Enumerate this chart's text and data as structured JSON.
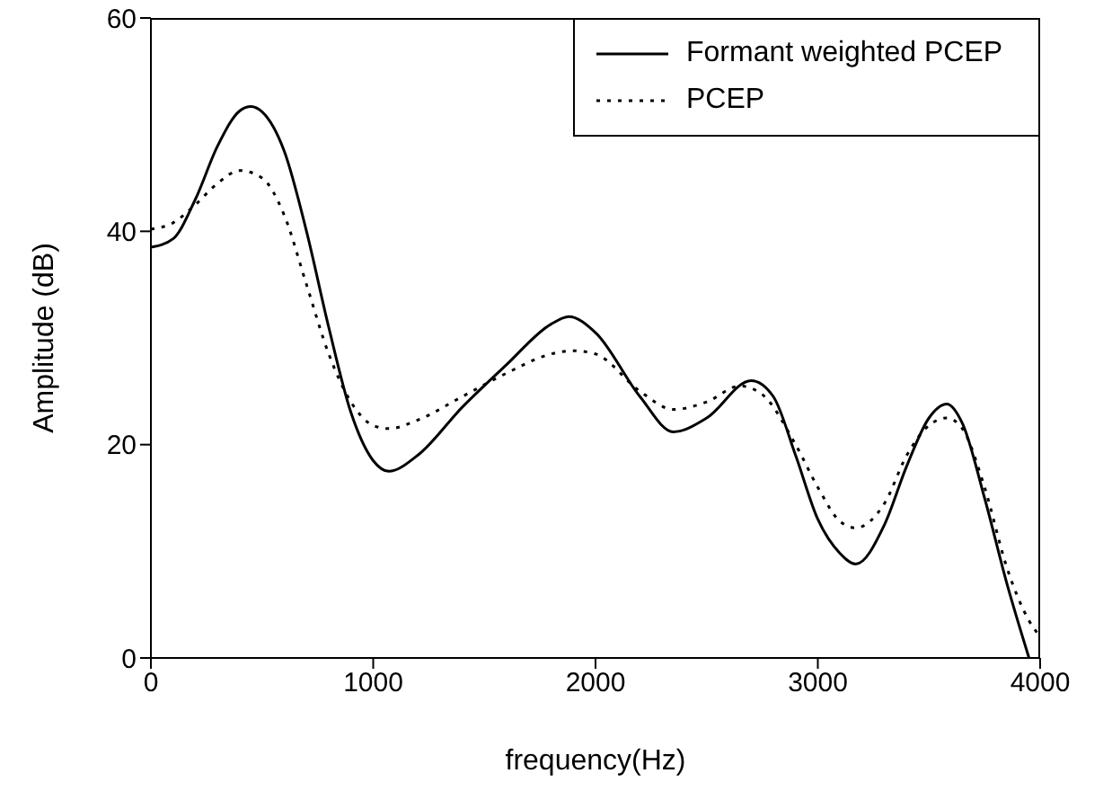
{
  "chart_data": {
    "type": "line",
    "xlabel": "frequency(Hz)",
    "ylabel": "Amplitude (dB)",
    "xlim": [
      0,
      4000
    ],
    "xticks": [
      0,
      1000,
      2000,
      3000,
      4000
    ],
    "ylim": [
      0,
      60
    ],
    "yticks": [
      0,
      20,
      40,
      60
    ],
    "grid": false,
    "legend": "top right",
    "marker": "none",
    "series": [
      {
        "name": "Formant weighted PCEP",
        "color": "#000000",
        "line_style": "solid",
        "x": [
          0,
          100,
          200,
          300,
          400,
          450,
          500,
          600,
          700,
          800,
          900,
          1000,
          1070,
          1200,
          1400,
          1600,
          1800,
          1880,
          2000,
          2200,
          2350,
          2500,
          2700,
          2800,
          2900,
          3000,
          3100,
          3170,
          3300,
          3400,
          3500,
          3580,
          3650,
          3750,
          3850,
          3950
        ],
        "values": [
          38.5,
          39.3,
          43,
          48,
          51.3,
          51.7,
          51.2,
          47.5,
          40,
          31,
          23,
          18.5,
          17.5,
          19,
          23.5,
          27.5,
          31.3,
          32,
          30.5,
          24.5,
          21.2,
          22.5,
          26,
          24.5,
          19,
          13,
          9.8,
          8.8,
          12.5,
          18,
          22.5,
          23.8,
          22,
          15,
          7,
          0
        ]
      },
      {
        "name": "PCEP",
        "color": "#000000",
        "line_style": "dotted",
        "x": [
          0,
          100,
          200,
          300,
          400,
          500,
          600,
          700,
          800,
          900,
          1000,
          1070,
          1200,
          1400,
          1600,
          1800,
          1900,
          2000,
          2200,
          2350,
          2500,
          2650,
          2750,
          2900,
          3000,
          3100,
          3170,
          3300,
          3400,
          3500,
          3580,
          3650,
          3750,
          3850,
          3950,
          4000
        ],
        "values": [
          40.2,
          40.8,
          42.5,
          44.5,
          45.7,
          45,
          41.5,
          35,
          28.5,
          24,
          21.8,
          21.5,
          22.3,
          24.5,
          26.7,
          28.5,
          28.8,
          28.5,
          25,
          23.3,
          24,
          25.5,
          24.7,
          20,
          16,
          12.8,
          12.2,
          14.5,
          19,
          21.8,
          22.5,
          21.5,
          16,
          8.5,
          3.5,
          2
        ]
      }
    ]
  }
}
